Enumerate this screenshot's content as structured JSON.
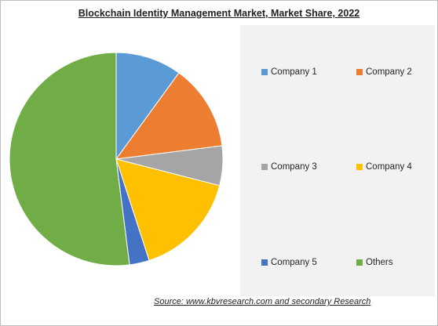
{
  "chart_data": {
    "type": "pie",
    "title": "Blockchain Identity Management Market, Market Share, 2022",
    "categories": [
      "Company 1",
      "Company 2",
      "Company 3",
      "Company 4",
      "Company 5",
      "Others"
    ],
    "values": [
      10,
      13,
      6,
      16,
      3,
      52
    ],
    "colors": [
      "#5b9bd5",
      "#ed7d31",
      "#a5a5a5",
      "#ffc000",
      "#4472c4",
      "#70ad47"
    ],
    "legend_position": "right",
    "start_angle_deg": 90,
    "direction": "clockwise"
  },
  "source": "Source:  www.kbvresearch.com  and secondary Research"
}
